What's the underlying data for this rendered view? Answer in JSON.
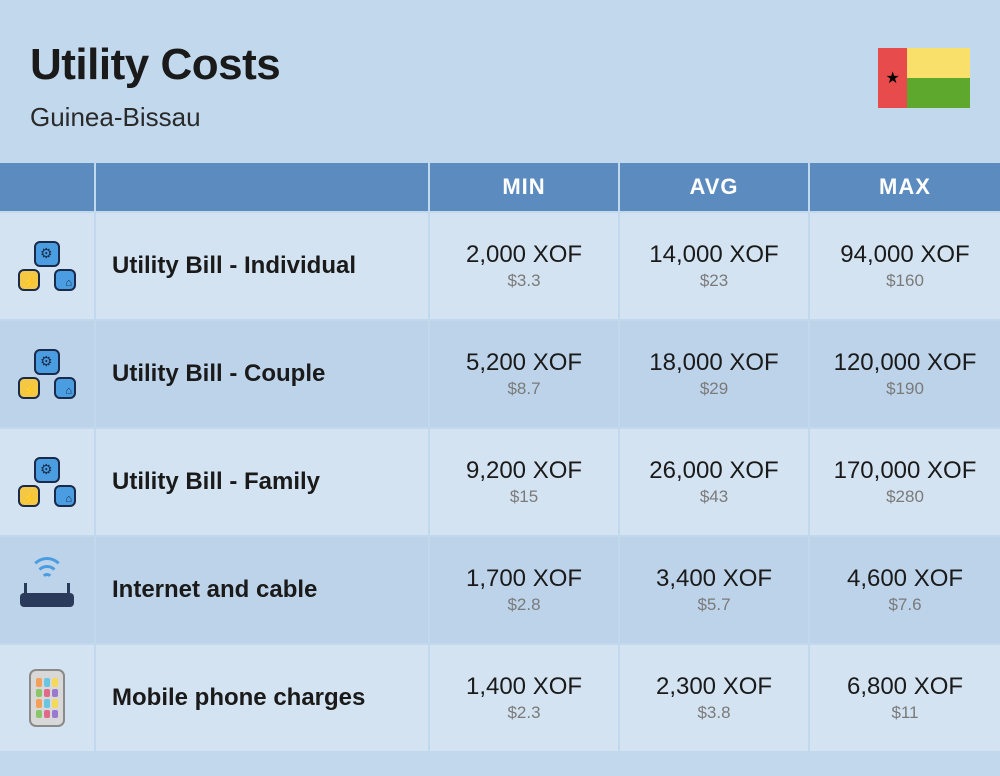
{
  "header": {
    "title": "Utility Costs",
    "subtitle": "Guinea-Bissau",
    "flag": {
      "left_color": "#e84b4b",
      "top_color": "#f9e06b",
      "bottom_color": "#5fa82e",
      "star_color": "#000000"
    }
  },
  "table": {
    "columns": [
      "MIN",
      "AVG",
      "MAX"
    ],
    "currency_primary": "XOF",
    "currency_secondary": "$",
    "header_bg": "#5c8cbf",
    "header_text_color": "#ffffff",
    "row_odd_bg": "#d4e3f1",
    "row_even_bg": "#bdd3e9",
    "border_color": "#c1d8ed",
    "rows": [
      {
        "icon": "utility",
        "label": "Utility Bill - Individual",
        "min": {
          "primary": "2,000 XOF",
          "secondary": "$3.3"
        },
        "avg": {
          "primary": "14,000 XOF",
          "secondary": "$23"
        },
        "max": {
          "primary": "94,000 XOF",
          "secondary": "$160"
        }
      },
      {
        "icon": "utility",
        "label": "Utility Bill - Couple",
        "min": {
          "primary": "5,200 XOF",
          "secondary": "$8.7"
        },
        "avg": {
          "primary": "18,000 XOF",
          "secondary": "$29"
        },
        "max": {
          "primary": "120,000 XOF",
          "secondary": "$190"
        }
      },
      {
        "icon": "utility",
        "label": "Utility Bill - Family",
        "min": {
          "primary": "9,200 XOF",
          "secondary": "$15"
        },
        "avg": {
          "primary": "26,000 XOF",
          "secondary": "$43"
        },
        "max": {
          "primary": "170,000 XOF",
          "secondary": "$280"
        }
      },
      {
        "icon": "router",
        "label": "Internet and cable",
        "min": {
          "primary": "1,700 XOF",
          "secondary": "$2.8"
        },
        "avg": {
          "primary": "3,400 XOF",
          "secondary": "$5.7"
        },
        "max": {
          "primary": "4,600 XOF",
          "secondary": "$7.6"
        }
      },
      {
        "icon": "phone",
        "label": "Mobile phone charges",
        "min": {
          "primary": "1,400 XOF",
          "secondary": "$2.3"
        },
        "avg": {
          "primary": "2,300 XOF",
          "secondary": "$3.8"
        },
        "max": {
          "primary": "6,800 XOF",
          "secondary": "$11"
        }
      }
    ]
  },
  "styling": {
    "page_bg": "#c1d8ed",
    "title_fontsize": 44,
    "title_weight": 800,
    "subtitle_fontsize": 26,
    "label_fontsize": 24,
    "price_main_fontsize": 24,
    "price_sub_fontsize": 17,
    "price_sub_color": "#7a7a7a",
    "text_color": "#1a1a1a"
  }
}
